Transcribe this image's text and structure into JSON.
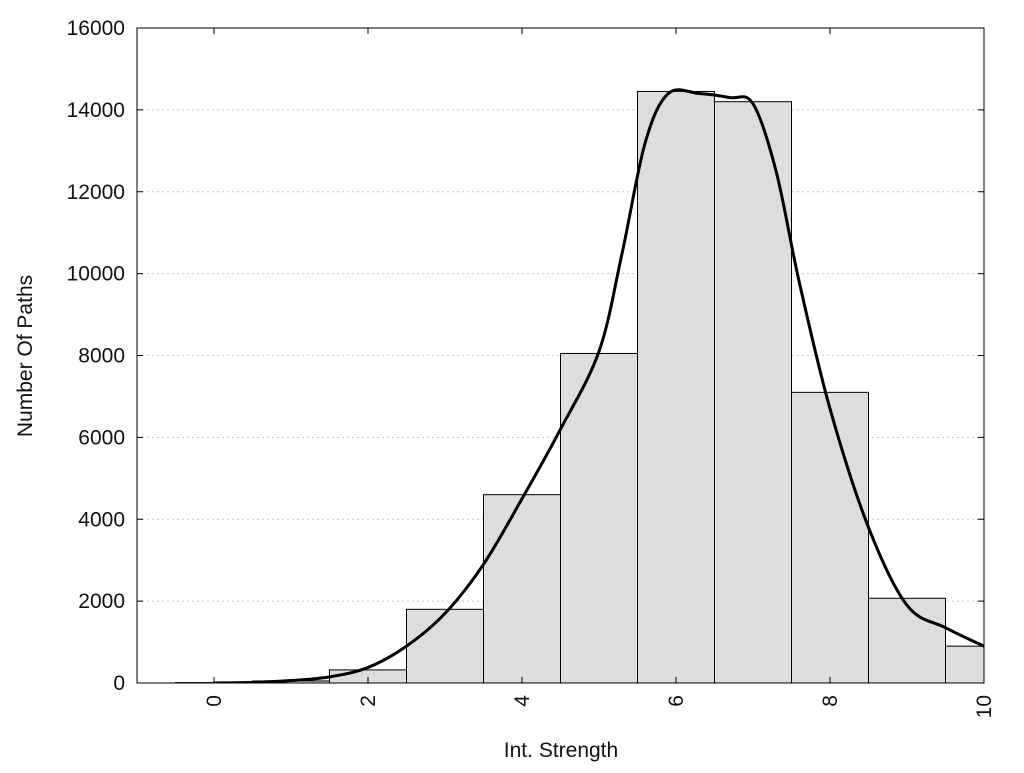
{
  "chart_data": {
    "type": "bar",
    "title": "",
    "xlabel": "Int. Strength",
    "ylabel": "Number Of Paths",
    "xlim": [
      -1,
      10
    ],
    "ylim": [
      0,
      16000
    ],
    "x_ticks": [
      0,
      2,
      4,
      6,
      8,
      10
    ],
    "y_ticks": [
      0,
      2000,
      4000,
      6000,
      8000,
      10000,
      12000,
      14000,
      16000
    ],
    "grid": {
      "y": true,
      "x": false,
      "style": "dotted"
    },
    "bar_color": "#dddddd",
    "bar_edge_color": "#000000",
    "series": [
      {
        "type": "bar",
        "x": [
          0,
          1,
          2,
          3,
          4,
          5,
          6,
          7,
          8,
          9,
          10
        ],
        "values": [
          10,
          50,
          320,
          1800,
          4600,
          8050,
          14450,
          14200,
          7100,
          2070,
          900
        ]
      },
      {
        "type": "line",
        "smooth": true,
        "color": "#000000",
        "points": [
          [
            0,
            0
          ],
          [
            0.5,
            15
          ],
          [
            1,
            60
          ],
          [
            1.5,
            150
          ],
          [
            2,
            380
          ],
          [
            2.5,
            900
          ],
          [
            3,
            1700
          ],
          [
            3.5,
            2900
          ],
          [
            4,
            4500
          ],
          [
            4.5,
            6200
          ],
          [
            5,
            8100
          ],
          [
            5.3,
            10500
          ],
          [
            5.6,
            13200
          ],
          [
            5.9,
            14400
          ],
          [
            6.3,
            14400
          ],
          [
            6.7,
            14300
          ],
          [
            7.0,
            14150
          ],
          [
            7.3,
            12500
          ],
          [
            7.6,
            9800
          ],
          [
            8.0,
            6700
          ],
          [
            8.5,
            3800
          ],
          [
            9.0,
            1900
          ],
          [
            9.5,
            1350
          ],
          [
            10,
            900
          ]
        ]
      }
    ]
  }
}
